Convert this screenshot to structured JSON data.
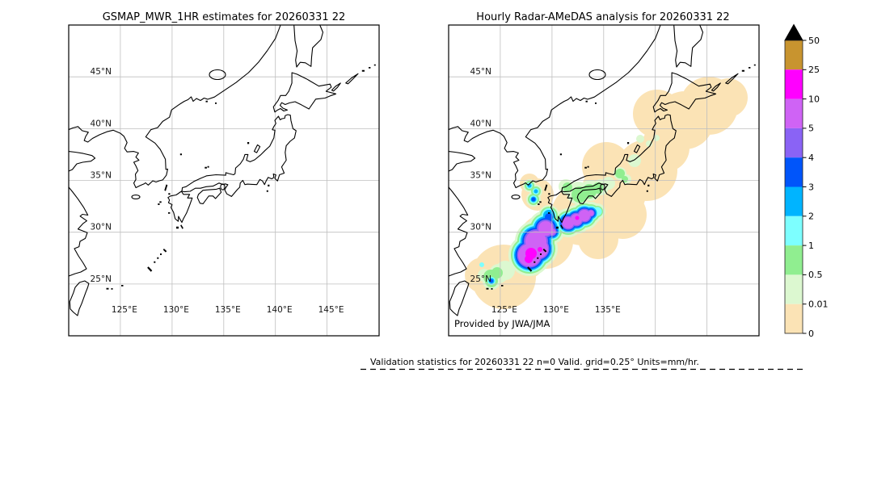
{
  "figure": {
    "background": "#ffffff",
    "panels": {
      "left": {
        "title": "GSMAP_MWR_1HR estimates for 20260331 22"
      },
      "right": {
        "title": "Hourly Radar-AMeDAS analysis for 20260331 22",
        "credit": "Provided by JWA/JMA"
      }
    },
    "axes": {
      "lat_labels": [
        "45°N",
        "40°N",
        "35°N",
        "30°N",
        "25°N"
      ],
      "lon_labels": [
        "125°E",
        "130°E",
        "135°E",
        "140°E",
        "145°E"
      ]
    },
    "footer": {
      "text": "Validation statistics for 20260331 22  n=0 Valid. grid=0.25° Units=mm/hr."
    }
  },
  "colorbar": {
    "tick_labels": [
      "50",
      "25",
      "10",
      "5",
      "4",
      "3",
      "2",
      "1",
      "0.5",
      "0.01",
      "0"
    ],
    "segment_colors_top_to_bottom": [
      "#c8942f",
      "#ff00ff",
      "#cf63f5",
      "#8a63f5",
      "#0055fa",
      "#00b4ff",
      "#7dffff",
      "#90ee90",
      "#dcf8d0",
      "#fbe3b5"
    ],
    "overflow_color": "#000000"
  },
  "chart_data": {
    "type": "map",
    "panels": [
      {
        "title": "GSMAP_MWR_1HR estimates for 20260331 22",
        "projection": "equirectangular",
        "lon_range": [
          120,
          150
        ],
        "lat_range": [
          20,
          50
        ],
        "gridline_interval_deg": 5,
        "precipitation": "none shown (empty map, coastlines only)"
      },
      {
        "title": "Hourly Radar-AMeDAS analysis for 20260331 22",
        "projection": "equirectangular",
        "lon_range": [
          120,
          150
        ],
        "lat_range": [
          20,
          50
        ],
        "gridline_interval_deg": 5,
        "precipitation": "SW-NE rain band from the Ryukyu Islands across Kyushu and Shikoku toward Hokkaido; heaviest cores 5-25 mm/hr southwest and south of Kyushu, trace amounts (<0.01) over northern Honshu and Hokkaido",
        "credit": "Provided by JWA/JMA"
      }
    ],
    "colorbar": {
      "units": "mm/hr",
      "levels": [
        0,
        0.01,
        0.5,
        1,
        2,
        3,
        4,
        5,
        10,
        25,
        50
      ],
      "colors_low_to_high": [
        "#fbe3b5",
        "#dcf8d0",
        "#90ee90",
        "#7dffff",
        "#00b4ff",
        "#0055fa",
        "#8a63f5",
        "#cf63f5",
        "#ff00ff",
        "#c8942f"
      ],
      "overflow_above_50": "#000000 (black triangle)"
    },
    "footer": "Validation statistics for 20260331 22  n=0 Valid. grid=0.25° Units=mm/hr."
  },
  "precip_layers": [
    {
      "level": "0-0.01",
      "color": "#fbe3b5",
      "circles": [
        [
          68,
          312,
          40
        ],
        [
          42,
          310,
          22
        ],
        [
          95,
          290,
          25
        ],
        [
          120,
          268,
          34
        ],
        [
          165,
          235,
          38
        ],
        [
          205,
          205,
          40
        ],
        [
          195,
          175,
          30
        ],
        [
          215,
          235,
          30
        ],
        [
          185,
          265,
          25
        ],
        [
          245,
          180,
          38
        ],
        [
          268,
          152,
          30
        ],
        [
          258,
          110,
          30
        ],
        [
          292,
          118,
          36
        ],
        [
          322,
          100,
          36
        ],
        [
          346,
          90,
          24
        ],
        [
          110,
          210,
          20
        ],
        [
          100,
          196,
          12
        ]
      ]
    },
    {
      "level": "0.01-0.5",
      "color": "#dcf8d0",
      "circles": [
        [
          120,
          252,
          22
        ],
        [
          108,
          268,
          26
        ],
        [
          100,
          285,
          26
        ],
        [
          111,
          277,
          24
        ],
        [
          148,
          245,
          18
        ],
        [
          158,
          241,
          18
        ],
        [
          168,
          236,
          18
        ],
        [
          176,
          233,
          14
        ],
        [
          128,
          256,
          15
        ],
        [
          124,
          236,
          13
        ],
        [
          122,
          246,
          14
        ],
        [
          105,
          216,
          9
        ],
        [
          100,
          199,
          8
        ],
        [
          108,
          206,
          8
        ],
        [
          53,
          317,
          11
        ],
        [
          62,
          308,
          12
        ],
        [
          70,
          304,
          12
        ],
        [
          44,
          310,
          8
        ],
        [
          160,
          208,
          14
        ],
        [
          175,
          205,
          13
        ],
        [
          188,
          201,
          10
        ],
        [
          198,
          196,
          8
        ],
        [
          145,
          200,
          9
        ],
        [
          212,
          184,
          8
        ],
        [
          220,
          191,
          6
        ],
        [
          230,
          168,
          8
        ],
        [
          237,
          141,
          5
        ],
        [
          257,
          140,
          4
        ],
        [
          248,
          147,
          4
        ],
        [
          184,
          231,
          10
        ]
      ]
    },
    {
      "level": "0.5-1",
      "color": "#90ee90",
      "circles": [
        [
          120,
          252,
          19
        ],
        [
          108,
          268,
          23
        ],
        [
          100,
          285,
          23
        ],
        [
          111,
          277,
          21
        ],
        [
          148,
          245,
          15
        ],
        [
          158,
          241,
          15
        ],
        [
          168,
          236,
          15
        ],
        [
          176,
          233,
          11
        ],
        [
          128,
          256,
          12
        ],
        [
          124,
          236,
          11
        ],
        [
          122,
          246,
          12
        ],
        [
          105,
          216,
          7
        ],
        [
          100,
          199,
          6
        ],
        [
          108,
          206,
          6
        ],
        [
          53,
          317,
          8
        ],
        [
          52,
          312,
          9
        ],
        [
          60,
          307,
          7
        ],
        [
          162,
          210,
          10
        ],
        [
          174,
          206,
          9
        ],
        [
          185,
          202,
          7
        ],
        [
          147,
          201,
          6
        ],
        [
          212,
          184,
          6
        ],
        [
          218,
          191,
          4
        ],
        [
          184,
          231,
          7
        ]
      ]
    },
    {
      "level": "1-2",
      "color": "#7dffff",
      "circles": [
        [
          120,
          252,
          17
        ],
        [
          108,
          268,
          21
        ],
        [
          100,
          285,
          21
        ],
        [
          111,
          277,
          19
        ],
        [
          148,
          245,
          13
        ],
        [
          158,
          241,
          13
        ],
        [
          168,
          236,
          13
        ],
        [
          176,
          233,
          9
        ],
        [
          128,
          256,
          10
        ],
        [
          124,
          236,
          9
        ],
        [
          122,
          246,
          10
        ],
        [
          105,
          216,
          5
        ],
        [
          100,
          199,
          4
        ],
        [
          108,
          206,
          4
        ],
        [
          53,
          317,
          5
        ],
        [
          41,
          297,
          3
        ],
        [
          184,
          231,
          5.5
        ]
      ]
    },
    {
      "level": "2-3",
      "color": "#00b4ff",
      "circles": [
        [
          120,
          252,
          15
        ],
        [
          108,
          268,
          19
        ],
        [
          100,
          285,
          19
        ],
        [
          111,
          277,
          17
        ],
        [
          148,
          245,
          11.5
        ],
        [
          158,
          241,
          11.5
        ],
        [
          168,
          236,
          11.5
        ],
        [
          176,
          233,
          7.5
        ],
        [
          128,
          256,
          8.5
        ],
        [
          124,
          236,
          7
        ],
        [
          122,
          246,
          8
        ],
        [
          105,
          216,
          3.5
        ],
        [
          53,
          317,
          3.5
        ],
        [
          100,
          199,
          2.5
        ],
        [
          108,
          206,
          2.5
        ]
      ]
    },
    {
      "level": "3-4",
      "color": "#0055fa",
      "circles": [
        [
          120,
          252,
          13
        ],
        [
          108,
          268,
          17
        ],
        [
          100,
          285,
          17.5
        ],
        [
          111,
          277,
          15.5
        ],
        [
          148,
          245,
          10
        ],
        [
          158,
          241,
          10
        ],
        [
          168,
          236,
          10
        ],
        [
          176,
          233,
          6
        ],
        [
          128,
          256,
          7
        ],
        [
          124,
          238,
          5
        ],
        [
          122,
          246,
          6
        ],
        [
          105,
          216,
          2.5
        ],
        [
          53,
          317,
          2.2
        ]
      ]
    },
    {
      "level": "4-5",
      "color": "#8a63f5",
      "circles": [
        [
          120,
          252,
          11
        ],
        [
          108,
          268,
          15
        ],
        [
          100,
          285,
          15.5
        ],
        [
          111,
          277,
          13.5
        ],
        [
          148,
          245,
          8.5
        ],
        [
          158,
          241,
          8.5
        ],
        [
          168,
          236,
          8.5
        ],
        [
          176,
          233,
          4.5
        ],
        [
          128,
          256,
          5.5
        ]
      ]
    },
    {
      "level": "5-10",
      "color": "#cf63f5",
      "circles": [
        [
          120,
          252,
          9
        ],
        [
          108,
          268,
          13
        ],
        [
          100,
          285,
          14
        ],
        [
          111,
          277,
          12
        ],
        [
          148,
          245,
          7
        ],
        [
          158,
          241,
          7
        ],
        [
          168,
          236,
          7
        ],
        [
          176,
          233,
          3.5
        ],
        [
          128,
          256,
          4
        ]
      ]
    },
    {
      "level": "10-25",
      "color": "#ff00ff",
      "circles": [
        [
          102,
          283,
          7
        ],
        [
          99,
          290,
          5
        ],
        [
          113,
          278,
          3
        ],
        [
          159,
          239,
          2.5
        ]
      ]
    }
  ]
}
